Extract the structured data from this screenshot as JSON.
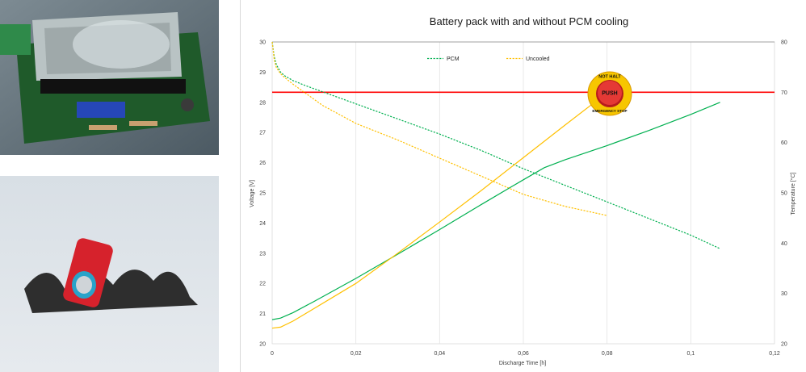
{
  "photos": [
    {
      "id": "pcb",
      "description_icon": "pcb-photo"
    },
    {
      "id": "cell",
      "description_icon": "battery-cell-photo"
    }
  ],
  "chart_data": {
    "type": "line",
    "title": "Battery pack with and without PCM cooling",
    "xlabel": "Discharge Time [h]",
    "ylabel_left": "Voltage [V]",
    "ylabel_right": "Temperature [°C]",
    "xlim": [
      0,
      0.12
    ],
    "ylim_left": [
      20,
      30
    ],
    "ylim_right": [
      20,
      80
    ],
    "x_ticks": [
      "0",
      "0,02",
      "0,04",
      "0,06",
      "0,08",
      "0,1",
      "0,12"
    ],
    "y_left_ticks": [
      "20",
      "21",
      "22",
      "23",
      "24",
      "25",
      "26",
      "27",
      "28",
      "29",
      "30"
    ],
    "y_right_ticks": [
      "20",
      "30",
      "40",
      "50",
      "60",
      "70",
      "80"
    ],
    "grid": "vertical",
    "legend_position": "top",
    "legend": [
      {
        "label": "PCM",
        "color": "#00b050"
      },
      {
        "label": "Uncooled",
        "color": "#ffc000"
      }
    ],
    "threshold_line": {
      "axis": "right",
      "value": 70,
      "color": "#ff0000"
    },
    "series": [
      {
        "name": "PCM",
        "kind": "voltage",
        "axis": "left",
        "style": "dashed",
        "color": "#00b050",
        "x": [
          0,
          0.0005,
          0.001,
          0.002,
          0.003,
          0.005,
          0.008,
          0.012,
          0.02,
          0.03,
          0.04,
          0.05,
          0.06,
          0.07,
          0.08,
          0.09,
          0.1,
          0.107
        ],
        "y": [
          30,
          29.5,
          29.25,
          29.0,
          28.88,
          28.72,
          28.55,
          28.35,
          27.95,
          27.45,
          26.95,
          26.4,
          25.8,
          25.25,
          24.7,
          24.15,
          23.6,
          23.15
        ]
      },
      {
        "name": "Uncooled",
        "kind": "voltage",
        "axis": "left",
        "style": "dashed",
        "color": "#ffc000",
        "x": [
          0,
          0.0005,
          0.001,
          0.002,
          0.003,
          0.005,
          0.008,
          0.012,
          0.02,
          0.03,
          0.04,
          0.05,
          0.06,
          0.07,
          0.08
        ],
        "y": [
          30,
          29.4,
          29.15,
          28.95,
          28.82,
          28.6,
          28.3,
          27.9,
          27.3,
          26.75,
          26.15,
          25.55,
          24.95,
          24.55,
          24.25
        ]
      },
      {
        "name": "PCM",
        "kind": "temperature",
        "axis": "right",
        "style": "solid",
        "color": "#00b050",
        "x": [
          0,
          0.002,
          0.005,
          0.01,
          0.02,
          0.03,
          0.04,
          0.05,
          0.06,
          0.065,
          0.07,
          0.08,
          0.09,
          0.1,
          0.107
        ],
        "y": [
          24.8,
          25.1,
          26.2,
          28.4,
          33.0,
          37.8,
          42.7,
          47.7,
          52.6,
          55.0,
          56.6,
          59.4,
          62.4,
          65.6,
          68.0
        ]
      },
      {
        "name": "Uncooled",
        "kind": "temperature",
        "axis": "right",
        "style": "solid",
        "color": "#ffc000",
        "x": [
          0,
          0.002,
          0.005,
          0.01,
          0.02,
          0.03,
          0.04,
          0.05,
          0.06,
          0.07,
          0.0775
        ],
        "y": [
          23.1,
          23.3,
          24.5,
          27.0,
          32.0,
          38.0,
          44.2,
          50.5,
          57.0,
          63.5,
          68.3
        ]
      }
    ],
    "annotation": {
      "type": "stop-button-sign",
      "top_text": "NOT HALT",
      "center_text": "PUSH",
      "bottom_text": "EMERGENCY STOP"
    }
  }
}
